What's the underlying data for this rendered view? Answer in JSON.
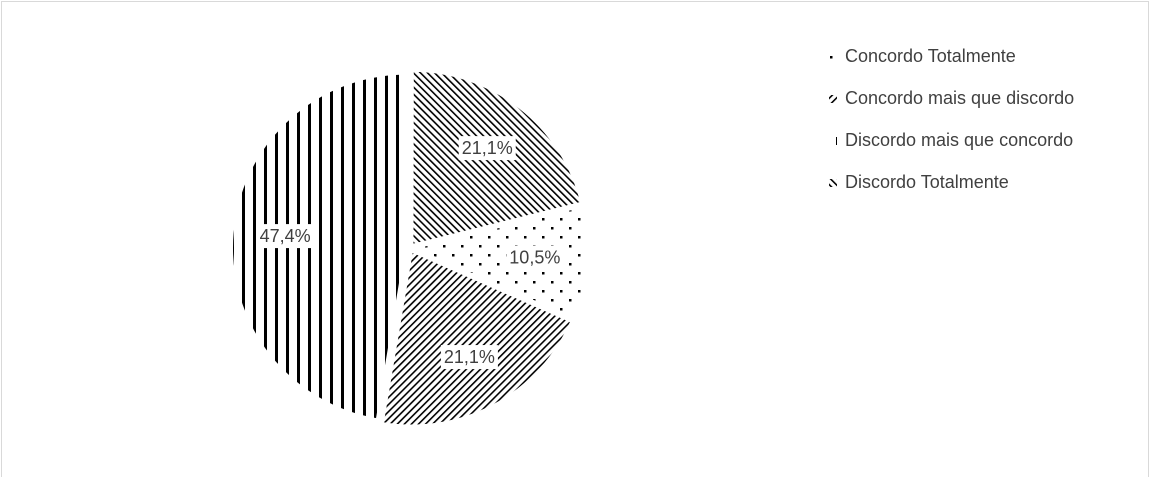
{
  "chart_data": {
    "type": "pie",
    "categories": [
      "Concordo Totalmente",
      "Concordo mais que discordo",
      "Discordo mais que concordo",
      "Discordo Totalmente"
    ],
    "values": [
      10.5,
      21.1,
      47.4,
      21.1
    ],
    "value_labels": [
      "10,5%",
      "21,1%",
      "47,4%",
      "21,1%"
    ],
    "patterns": [
      "dots",
      "forward-hatch",
      "vertical",
      "back-hatch"
    ],
    "color": "#000000",
    "first_slice_angle": 76,
    "legend": "right"
  }
}
